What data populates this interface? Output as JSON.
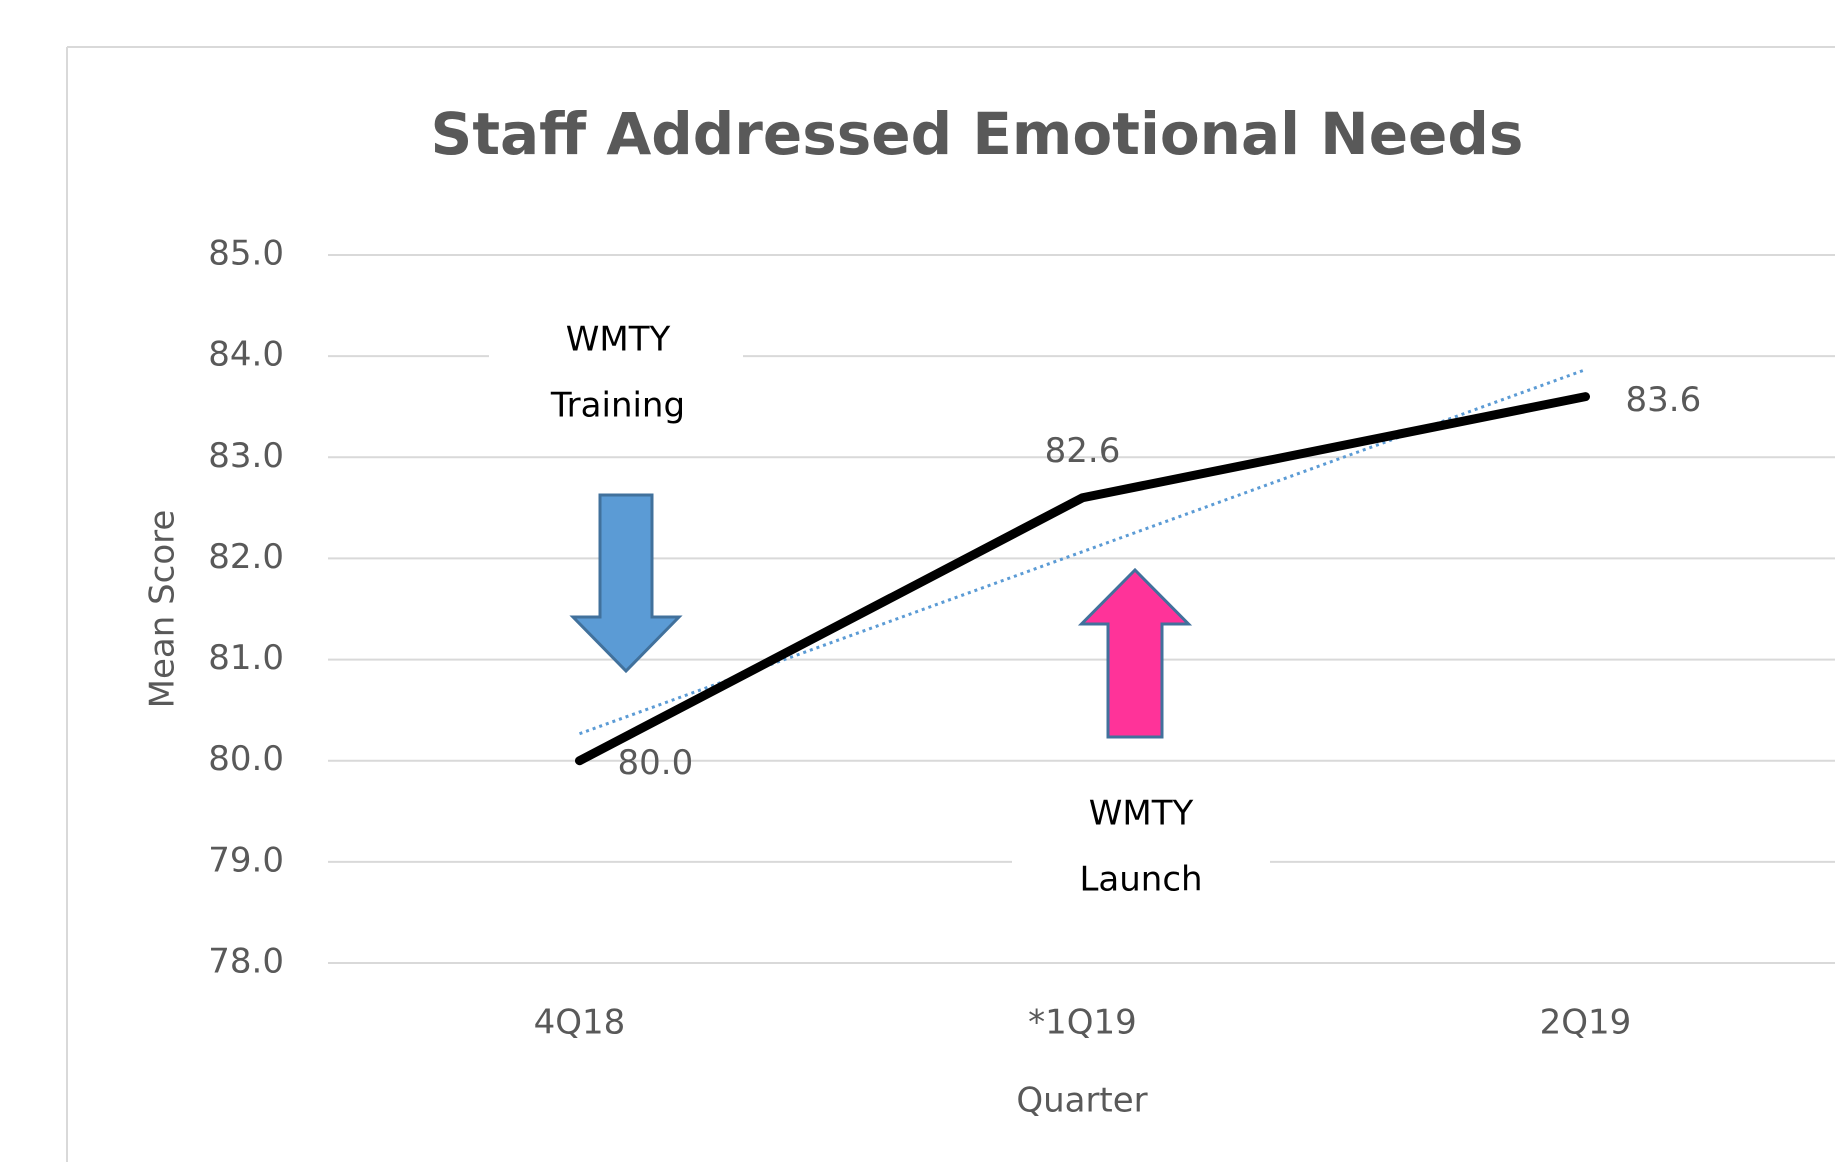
{
  "chart_data": {
    "type": "line",
    "title": "Staff Addressed Emotional Needs",
    "x_label": "Quarter",
    "y_label": "Mean Score",
    "categories": [
      "4Q18",
      "*1Q19",
      "2Q19"
    ],
    "series": [
      {
        "color": "#000000",
        "values": [
          80.0,
          82.6,
          83.6
        ],
        "value_labels": [
          "80.0",
          "82.6",
          "83.6"
        ]
      }
    ],
    "ylim": [
      78,
      85
    ],
    "yticks": [
      {
        "value": 78,
        "label": "78.0"
      },
      {
        "value": 79,
        "label": "79.0"
      },
      {
        "value": 80,
        "label": "80.0"
      },
      {
        "value": 81,
        "label": "81.0"
      },
      {
        "value": 82,
        "label": "82.0"
      },
      {
        "value": 83,
        "label": "83.0"
      },
      {
        "value": 84,
        "label": "84.0"
      },
      {
        "value": 85,
        "label": "85.0"
      }
    ],
    "grid": true,
    "trendline": {
      "type": "linear",
      "color": "#5b9bd5",
      "style": "dotted"
    },
    "annotations": [
      {
        "lines": [
          "WMTY",
          "Training"
        ],
        "arrow": "down",
        "color": "#5b9bd5"
      },
      {
        "lines": [
          "WMTY",
          "Launch"
        ],
        "arrow": "up",
        "color": "#ff3399"
      }
    ]
  }
}
